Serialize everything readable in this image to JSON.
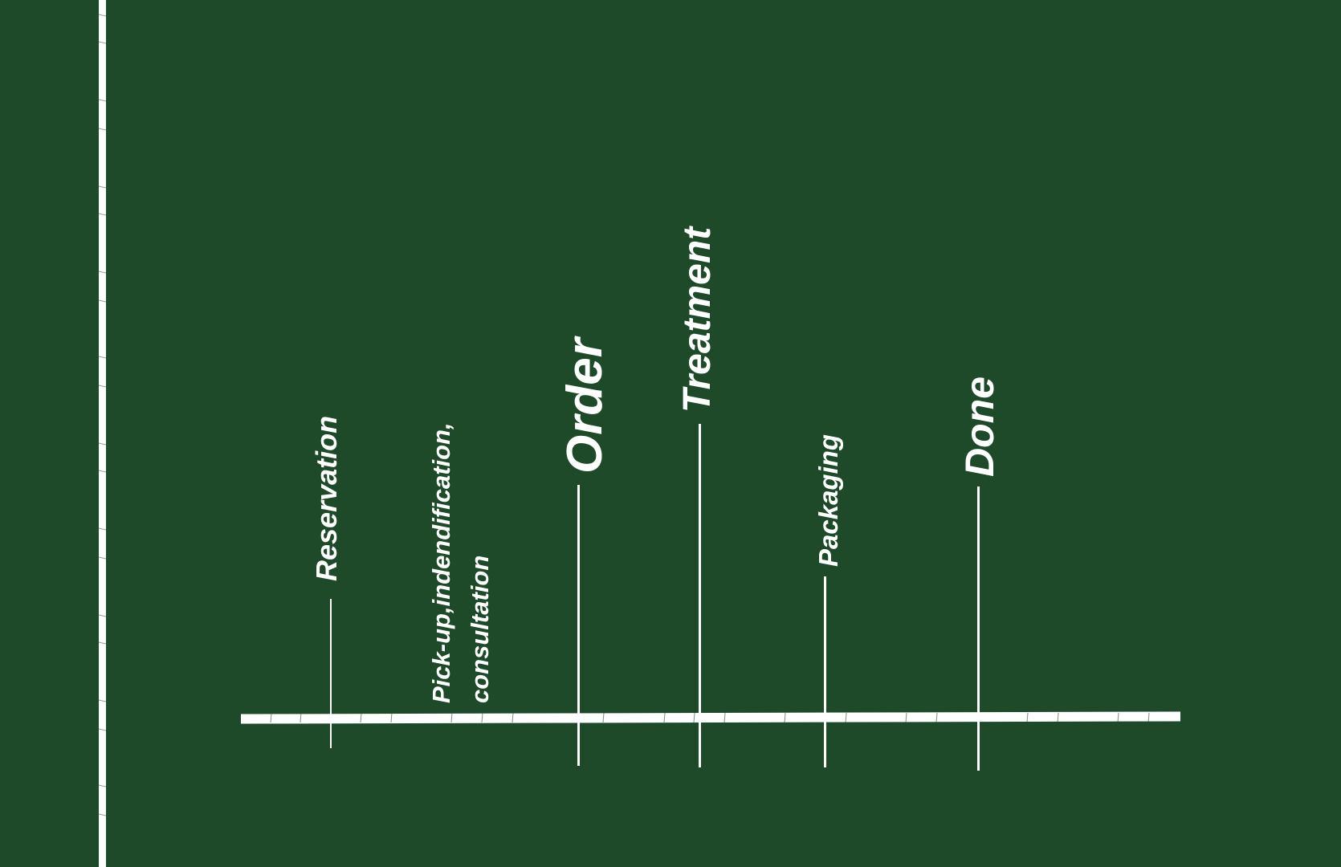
{
  "colors": {
    "background": "#1e4a2a",
    "line": "#ffffff"
  },
  "steps": [
    {
      "id": "reservation",
      "label": "Reservation"
    },
    {
      "id": "pickup",
      "label": "Pick-up,indendification,\nconsultation"
    },
    {
      "id": "order",
      "label": "Order"
    },
    {
      "id": "treatment",
      "label": "Treatment"
    },
    {
      "id": "packaging",
      "label": "Packaging"
    },
    {
      "id": "done",
      "label": "Done"
    }
  ]
}
